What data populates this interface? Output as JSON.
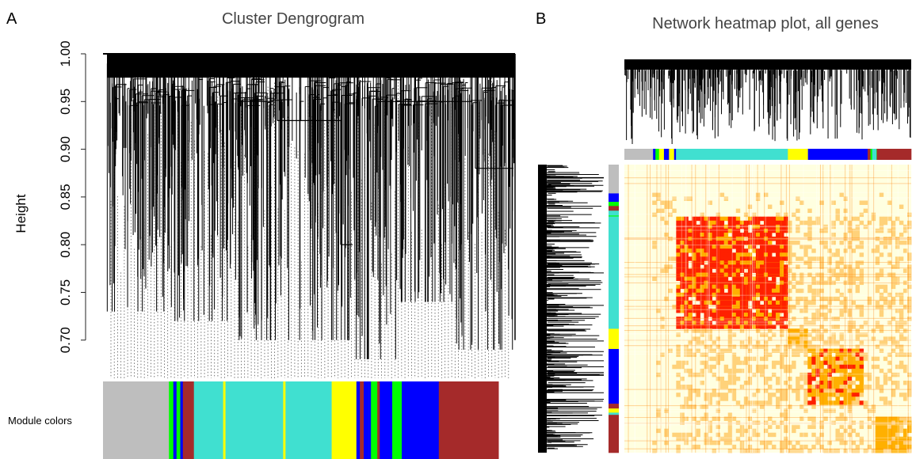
{
  "panel_a": {
    "letter": "A",
    "title": "Cluster Dengrogram",
    "ylabel": "Height",
    "module_label": "Module colors"
  },
  "panel_b": {
    "letter": "B",
    "title": "Network heatmap plot, all genes"
  },
  "colors": {
    "grey": "#bebebe",
    "turquoise": "#40e0d0",
    "blue": "#0000ff",
    "brown": "#a52a2a",
    "yellow": "#ffff00",
    "green": "#00ff00",
    "heat_low": "#ffffe0",
    "heat_mid": "#ffb000",
    "heat_high": "#ff2000"
  },
  "chart_data": [
    {
      "type": "dendrogram",
      "title": "Cluster Dengrogram",
      "ylabel": "Height",
      "ylim": [
        0.66,
        1.0
      ],
      "yticks": [
        "0.70",
        "0.75",
        "0.80",
        "0.85",
        "0.90",
        "0.95",
        "1.00"
      ],
      "ytick_values": [
        0.7,
        0.75,
        0.8,
        0.85,
        0.9,
        0.95,
        1.0
      ],
      "module_colors_label": "Module colors",
      "modules": [
        {
          "name": "grey",
          "fraction": 0.16
        },
        {
          "name": "mixed",
          "fraction": 0.085
        },
        {
          "name": "turquoise",
          "fraction": 0.31
        },
        {
          "name": "yellow",
          "fraction": 0.06
        },
        {
          "name": "mixed",
          "fraction": 0.11
        },
        {
          "name": "blue",
          "fraction": 0.09
        },
        {
          "name": "brown",
          "fraction": 0.145
        }
      ]
    },
    {
      "type": "heatmap",
      "title": "Network heatmap plot, all genes",
      "modules": [
        {
          "name": "grey",
          "fraction": 0.1
        },
        {
          "name": "mixed",
          "fraction": 0.08
        },
        {
          "name": "turquoise",
          "fraction": 0.39
        },
        {
          "name": "yellow",
          "fraction": 0.07
        },
        {
          "name": "blue",
          "fraction": 0.19
        },
        {
          "name": "mixed",
          "fraction": 0.05
        },
        {
          "name": "brown",
          "fraction": 0.12
        }
      ]
    }
  ]
}
